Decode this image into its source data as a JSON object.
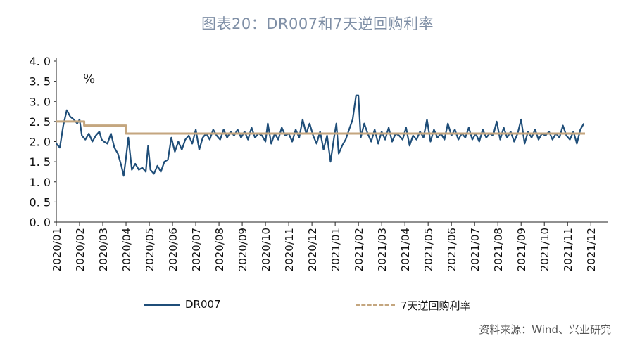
{
  "title": "图表20：DR007和7天逆回购利率",
  "source": "资料来源：Wind、兴业研究",
  "chart_data": {
    "type": "line",
    "ylabel": "%",
    "ylim": [
      0,
      4
    ],
    "yticks": [
      "4. 0",
      "3. 5",
      "3. 0",
      "2. 5",
      "2. 0",
      "1. 5",
      "1. 0",
      "0. 5",
      "0. 0"
    ],
    "xticks": [
      "2020/01",
      "2020/02",
      "2020/03",
      "2020/04",
      "2020/05",
      "2020/06",
      "2020/07",
      "2020/08",
      "2020/09",
      "2020/10",
      "2020/11",
      "2020/12",
      "2021/01",
      "2021/02",
      "2021/03",
      "2021/04",
      "2021/05",
      "2021/06",
      "2021/07",
      "2021/08",
      "2021/09",
      "2021/10",
      "2021/11",
      "2021/12"
    ],
    "legend": "bottom",
    "series": [
      {
        "name": "DR007",
        "color": "#1f4e79",
        "points": [
          [
            0.0,
            1.95
          ],
          [
            0.15,
            1.85
          ],
          [
            0.3,
            2.4
          ],
          [
            0.45,
            2.78
          ],
          [
            0.6,
            2.62
          ],
          [
            0.75,
            2.55
          ],
          [
            0.9,
            2.45
          ],
          [
            1.0,
            2.55
          ],
          [
            1.1,
            2.15
          ],
          [
            1.25,
            2.05
          ],
          [
            1.4,
            2.2
          ],
          [
            1.55,
            2.0
          ],
          [
            1.7,
            2.15
          ],
          [
            1.85,
            2.25
          ],
          [
            1.95,
            2.05
          ],
          [
            2.05,
            2.0
          ],
          [
            2.2,
            1.95
          ],
          [
            2.35,
            2.2
          ],
          [
            2.5,
            1.85
          ],
          [
            2.65,
            1.7
          ],
          [
            2.8,
            1.4
          ],
          [
            2.9,
            1.15
          ],
          [
            3.0,
            1.6
          ],
          [
            3.1,
            2.1
          ],
          [
            3.25,
            1.3
          ],
          [
            3.4,
            1.45
          ],
          [
            3.55,
            1.3
          ],
          [
            3.7,
            1.35
          ],
          [
            3.85,
            1.25
          ],
          [
            3.95,
            1.9
          ],
          [
            4.05,
            1.3
          ],
          [
            4.2,
            1.2
          ],
          [
            4.35,
            1.4
          ],
          [
            4.5,
            1.25
          ],
          [
            4.65,
            1.5
          ],
          [
            4.8,
            1.55
          ],
          [
            4.95,
            2.1
          ],
          [
            5.1,
            1.75
          ],
          [
            5.25,
            2.0
          ],
          [
            5.4,
            1.8
          ],
          [
            5.55,
            2.05
          ],
          [
            5.7,
            2.15
          ],
          [
            5.85,
            1.95
          ],
          [
            6.0,
            2.3
          ],
          [
            6.15,
            1.8
          ],
          [
            6.3,
            2.1
          ],
          [
            6.45,
            2.2
          ],
          [
            6.6,
            2.05
          ],
          [
            6.75,
            2.3
          ],
          [
            6.9,
            2.15
          ],
          [
            7.05,
            2.05
          ],
          [
            7.2,
            2.3
          ],
          [
            7.35,
            2.1
          ],
          [
            7.5,
            2.25
          ],
          [
            7.65,
            2.15
          ],
          [
            7.8,
            2.3
          ],
          [
            7.95,
            2.1
          ],
          [
            8.1,
            2.25
          ],
          [
            8.25,
            2.05
          ],
          [
            8.4,
            2.35
          ],
          [
            8.55,
            2.1
          ],
          [
            8.7,
            2.2
          ],
          [
            8.85,
            2.15
          ],
          [
            9.0,
            2.0
          ],
          [
            9.1,
            2.45
          ],
          [
            9.25,
            1.95
          ],
          [
            9.4,
            2.2
          ],
          [
            9.55,
            2.05
          ],
          [
            9.7,
            2.35
          ],
          [
            9.85,
            2.15
          ],
          [
            10.0,
            2.2
          ],
          [
            10.15,
            2.0
          ],
          [
            10.3,
            2.3
          ],
          [
            10.45,
            2.1
          ],
          [
            10.6,
            2.55
          ],
          [
            10.75,
            2.2
          ],
          [
            10.9,
            2.45
          ],
          [
            11.05,
            2.15
          ],
          [
            11.2,
            1.95
          ],
          [
            11.35,
            2.25
          ],
          [
            11.5,
            1.8
          ],
          [
            11.65,
            2.15
          ],
          [
            11.8,
            1.5
          ],
          [
            11.95,
            2.1
          ],
          [
            12.05,
            2.45
          ],
          [
            12.15,
            1.7
          ],
          [
            12.3,
            1.9
          ],
          [
            12.45,
            2.05
          ],
          [
            12.6,
            2.3
          ],
          [
            12.75,
            2.55
          ],
          [
            12.9,
            3.15
          ],
          [
            13.0,
            3.15
          ],
          [
            13.1,
            2.1
          ],
          [
            13.25,
            2.45
          ],
          [
            13.4,
            2.2
          ],
          [
            13.55,
            2.0
          ],
          [
            13.7,
            2.3
          ],
          [
            13.85,
            1.95
          ],
          [
            14.0,
            2.25
          ],
          [
            14.15,
            2.05
          ],
          [
            14.3,
            2.35
          ],
          [
            14.45,
            2.0
          ],
          [
            14.6,
            2.2
          ],
          [
            14.75,
            2.15
          ],
          [
            14.9,
            2.05
          ],
          [
            15.05,
            2.35
          ],
          [
            15.2,
            1.9
          ],
          [
            15.35,
            2.15
          ],
          [
            15.5,
            2.05
          ],
          [
            15.65,
            2.25
          ],
          [
            15.8,
            2.1
          ],
          [
            15.95,
            2.55
          ],
          [
            16.1,
            2.0
          ],
          [
            16.25,
            2.3
          ],
          [
            16.4,
            2.1
          ],
          [
            16.55,
            2.2
          ],
          [
            16.7,
            2.05
          ],
          [
            16.85,
            2.45
          ],
          [
            17.0,
            2.15
          ],
          [
            17.15,
            2.3
          ],
          [
            17.3,
            2.05
          ],
          [
            17.45,
            2.2
          ],
          [
            17.6,
            2.1
          ],
          [
            17.75,
            2.35
          ],
          [
            17.9,
            2.05
          ],
          [
            18.05,
            2.2
          ],
          [
            18.2,
            2.0
          ],
          [
            18.35,
            2.3
          ],
          [
            18.5,
            2.1
          ],
          [
            18.65,
            2.2
          ],
          [
            18.8,
            2.15
          ],
          [
            18.95,
            2.5
          ],
          [
            19.1,
            2.05
          ],
          [
            19.25,
            2.35
          ],
          [
            19.4,
            2.1
          ],
          [
            19.55,
            2.25
          ],
          [
            19.7,
            2.0
          ],
          [
            19.85,
            2.2
          ],
          [
            20.0,
            2.55
          ],
          [
            20.15,
            1.95
          ],
          [
            20.3,
            2.25
          ],
          [
            20.45,
            2.1
          ],
          [
            20.6,
            2.3
          ],
          [
            20.75,
            2.05
          ],
          [
            20.9,
            2.2
          ],
          [
            21.05,
            2.15
          ],
          [
            21.2,
            2.25
          ],
          [
            21.35,
            2.05
          ],
          [
            21.5,
            2.2
          ],
          [
            21.65,
            2.1
          ],
          [
            21.8,
            2.4
          ],
          [
            21.95,
            2.15
          ],
          [
            22.1,
            2.05
          ],
          [
            22.25,
            2.25
          ],
          [
            22.4,
            1.95
          ],
          [
            22.55,
            2.3
          ],
          [
            22.7,
            2.45
          ]
        ]
      },
      {
        "name": "7天逆回购利率",
        "color": "#c4a67f",
        "points": [
          [
            0,
            2.5
          ],
          [
            1.2,
            2.5
          ],
          [
            1.2,
            2.4
          ],
          [
            3.0,
            2.4
          ],
          [
            3.0,
            2.2
          ],
          [
            22.75,
            2.2
          ]
        ]
      }
    ]
  }
}
